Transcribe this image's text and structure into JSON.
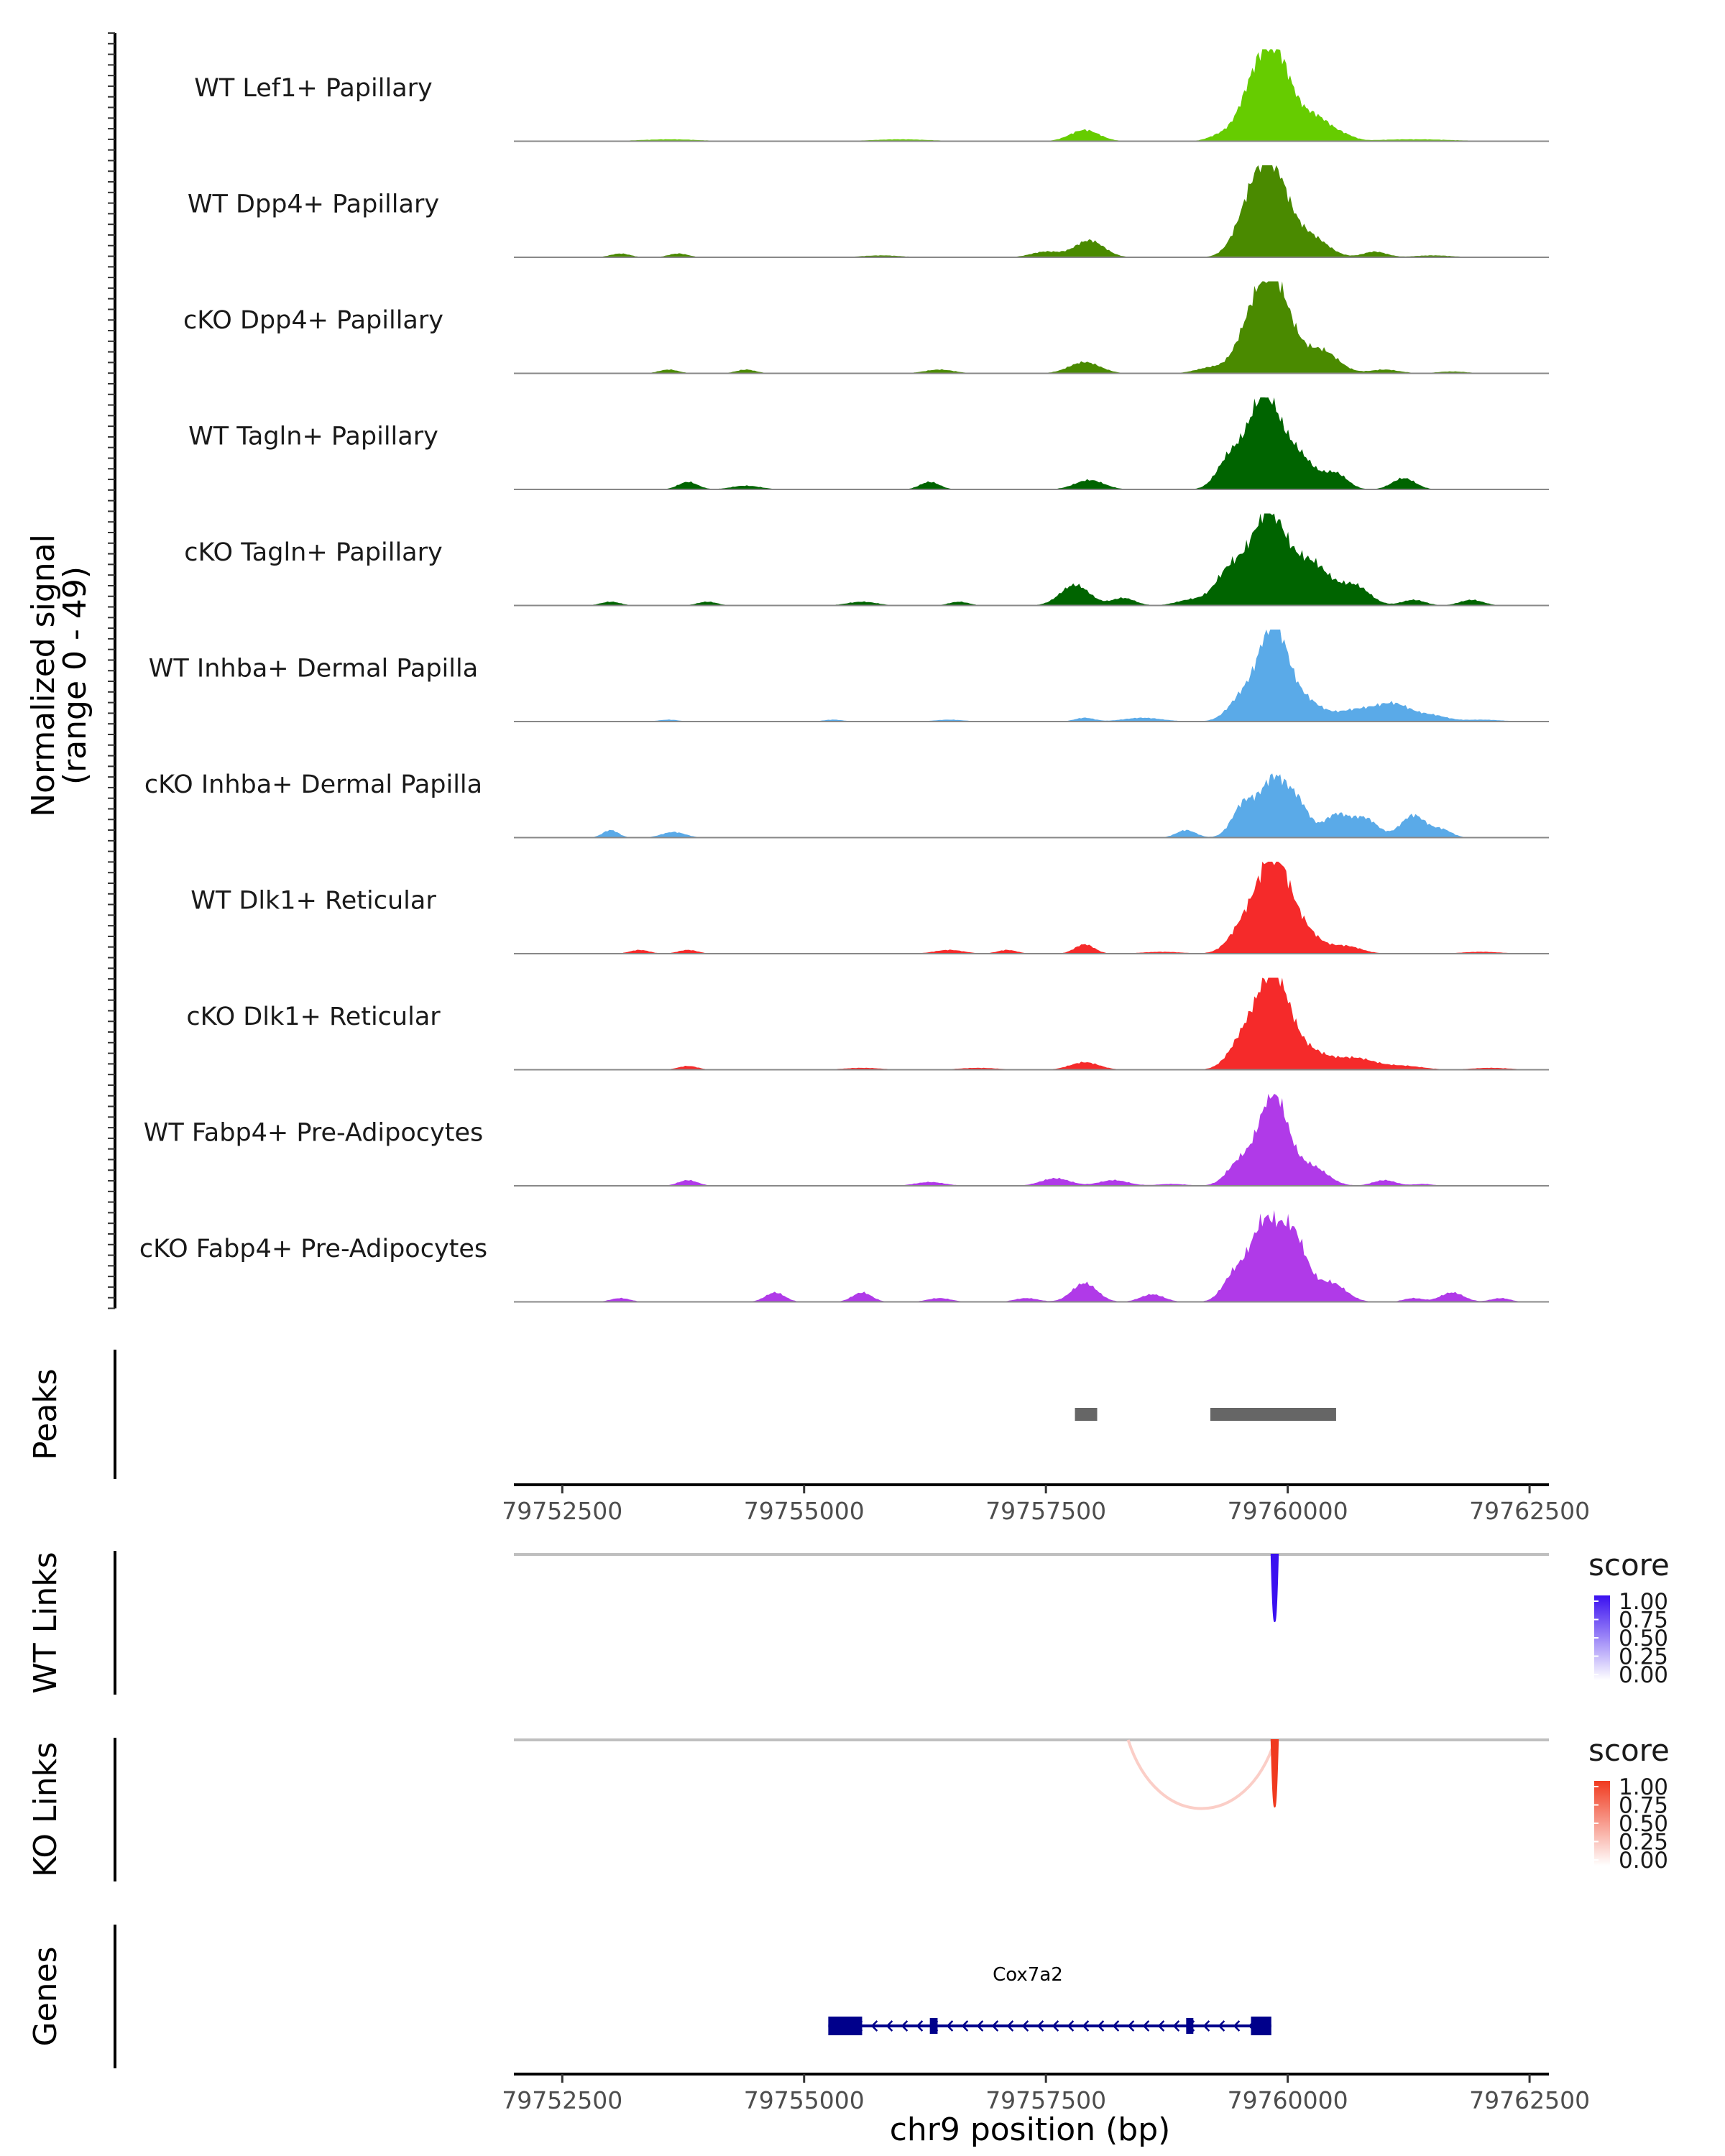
{
  "chart_data": {
    "type": "area",
    "region": "chr9",
    "xlim": [
      79752000,
      79762700
    ],
    "x_ticks": [
      79752500,
      79755000,
      79757500,
      79760000,
      79762500
    ],
    "x_tick_labels": [
      "79752500",
      "79755000",
      "79757500",
      "79760000",
      "79762500"
    ],
    "xlabel": "chr9 position (bp)",
    "coverage_ylabel": [
      "Normalized signal",
      "(range 0 - 49)"
    ],
    "ylim": [
      0,
      49
    ],
    "tracks": [
      {
        "name": "WT Lef1+ Papillary",
        "color": "#66cc00",
        "peaks": [
          [
            79759850,
            49,
            180
          ],
          [
            79759600,
            14,
            140
          ],
          [
            79760300,
            12,
            160
          ],
          [
            79757900,
            6,
            150
          ],
          [
            79759300,
            3,
            120
          ],
          [
            79760600,
            2,
            100
          ],
          [
            79753600,
            1,
            300
          ],
          [
            79756000,
            1,
            300
          ],
          [
            79761300,
            1,
            400
          ]
        ]
      },
      {
        "name": "WT Dpp4+ Papillary",
        "color": "#4a8a00",
        "peaks": [
          [
            79759820,
            49,
            180
          ],
          [
            79759580,
            14,
            150
          ],
          [
            79760250,
            10,
            170
          ],
          [
            79757950,
            9,
            150
          ],
          [
            79757500,
            3,
            150
          ],
          [
            79760900,
            3,
            120
          ],
          [
            79753100,
            2,
            100
          ],
          [
            79753700,
            2,
            100
          ],
          [
            79755800,
            1,
            200
          ],
          [
            79761500,
            1,
            200
          ]
        ]
      },
      {
        "name": "cKO Dpp4+ Papillary",
        "color": "#4a8a00",
        "peaks": [
          [
            79759850,
            49,
            180
          ],
          [
            79759600,
            16,
            150
          ],
          [
            79760350,
            12,
            170
          ],
          [
            79757900,
            6,
            160
          ],
          [
            79759200,
            3,
            150
          ],
          [
            79753600,
            2,
            100
          ],
          [
            79754400,
            2,
            100
          ],
          [
            79756400,
            2,
            150
          ],
          [
            79761000,
            2,
            150
          ],
          [
            79761700,
            1,
            150
          ]
        ]
      },
      {
        "name": "WT Tagln+ Papillary",
        "color": "#006400",
        "peaks": [
          [
            79759750,
            49,
            160
          ],
          [
            79759400,
            16,
            130
          ],
          [
            79760100,
            18,
            170
          ],
          [
            79760500,
            8,
            120
          ],
          [
            79761200,
            6,
            120
          ],
          [
            79757950,
            5,
            150
          ],
          [
            79753800,
            4,
            100
          ],
          [
            79756300,
            4,
            100
          ],
          [
            79754400,
            2,
            150
          ]
        ]
      },
      {
        "name": "cKO Tagln+ Papillary",
        "color": "#006400",
        "peaks": [
          [
            79759800,
            49,
            180
          ],
          [
            79759400,
            18,
            150
          ],
          [
            79760250,
            22,
            190
          ],
          [
            79757800,
            11,
            150
          ],
          [
            79760700,
            10,
            150
          ],
          [
            79758300,
            4,
            120
          ],
          [
            79759000,
            3,
            150
          ],
          [
            79761300,
            3,
            120
          ],
          [
            79761900,
            3,
            120
          ],
          [
            79753000,
            2,
            100
          ],
          [
            79754000,
            2,
            100
          ],
          [
            79755600,
            2,
            150
          ],
          [
            79756600,
            2,
            100
          ]
        ]
      },
      {
        "name": "WT Inhba+ Dermal Papilla",
        "color": "#5aaae8",
        "peaks": [
          [
            79759850,
            49,
            140
          ],
          [
            79759550,
            14,
            150
          ],
          [
            79760150,
            12,
            180
          ],
          [
            79760700,
            6,
            200
          ],
          [
            79761100,
            9,
            180
          ],
          [
            79761500,
            3,
            150
          ],
          [
            79757900,
            2,
            100
          ],
          [
            79758500,
            2,
            200
          ],
          [
            79753600,
            1,
            100
          ],
          [
            79755300,
            1,
            100
          ],
          [
            79756500,
            1,
            150
          ],
          [
            79762000,
            1,
            200
          ]
        ]
      },
      {
        "name": "cKO Inhba+ Dermal Papilla",
        "color": "#5aaae8",
        "peaks": [
          [
            79759850,
            30,
            130
          ],
          [
            79759550,
            18,
            120
          ],
          [
            79760100,
            18,
            120
          ],
          [
            79760500,
            12,
            130
          ],
          [
            79760800,
            10,
            130
          ],
          [
            79761300,
            12,
            130
          ],
          [
            79761600,
            4,
            100
          ],
          [
            79758950,
            4,
            100
          ],
          [
            79753000,
            4,
            80
          ],
          [
            79753650,
            3,
            120
          ]
        ]
      },
      {
        "name": "WT Dlk1+ Reticular",
        "color": "#f52a2a",
        "peaks": [
          [
            79759850,
            49,
            160
          ],
          [
            79759550,
            14,
            150
          ],
          [
            79760150,
            12,
            170
          ],
          [
            79760600,
            4,
            160
          ],
          [
            79757900,
            5,
            100
          ],
          [
            79757100,
            2,
            100
          ],
          [
            79753300,
            2,
            100
          ],
          [
            79753800,
            2,
            100
          ],
          [
            79756500,
            2,
            150
          ],
          [
            79758700,
            1,
            200
          ],
          [
            79762000,
            1,
            200
          ]
        ]
      },
      {
        "name": "cKO Dlk1+ Reticular",
        "color": "#f52a2a",
        "peaks": [
          [
            79759850,
            49,
            160
          ],
          [
            79759550,
            16,
            150
          ],
          [
            79760200,
            10,
            200
          ],
          [
            79760700,
            6,
            200
          ],
          [
            79757900,
            4,
            150
          ],
          [
            79761200,
            2,
            200
          ],
          [
            79753800,
            2,
            100
          ],
          [
            79755600,
            1,
            200
          ],
          [
            79756800,
            1,
            200
          ],
          [
            79762100,
            1,
            200
          ]
        ]
      },
      {
        "name": "WT Fabp4+ Pre-Adipocytes",
        "color": "#b03ae8",
        "peaks": [
          [
            79759850,
            49,
            150
          ],
          [
            79759500,
            12,
            130
          ],
          [
            79760250,
            10,
            160
          ],
          [
            79757600,
            4,
            150
          ],
          [
            79758200,
            3,
            150
          ],
          [
            79753800,
            3,
            100
          ],
          [
            79756300,
            2,
            150
          ],
          [
            79761000,
            3,
            120
          ],
          [
            79761400,
            1,
            100
          ],
          [
            79758800,
            1,
            150
          ]
        ]
      },
      {
        "name": "cKO Fabp4+ Pre-Adipocytes",
        "color": "#b03ae8",
        "peaks": [
          [
            79759750,
            40,
            140
          ],
          [
            79760050,
            36,
            140
          ],
          [
            79759450,
            14,
            120
          ],
          [
            79760450,
            10,
            150
          ],
          [
            79757900,
            10,
            130
          ],
          [
            79754700,
            5,
            100
          ],
          [
            79755600,
            5,
            100
          ],
          [
            79761700,
            5,
            120
          ],
          [
            79753100,
            2,
            100
          ],
          [
            79756400,
            2,
            120
          ],
          [
            79757300,
            2,
            120
          ],
          [
            79758600,
            4,
            120
          ],
          [
            79761300,
            2,
            100
          ],
          [
            79762200,
            2,
            100
          ]
        ]
      }
    ],
    "peaks": {
      "label": "Peaks",
      "ranges": [
        [
          79757800,
          79758030
        ],
        [
          79759200,
          79760500
        ]
      ]
    },
    "wt_links": {
      "label": "WT Links",
      "links": [
        [
          79759860,
          79759870,
          1.0
        ]
      ],
      "legend": {
        "title": "score",
        "ticks": [
          "1.00",
          "0.75",
          "0.50",
          "0.25",
          "0.00"
        ]
      }
    },
    "ko_links": {
      "label": "KO Links",
      "links": [
        [
          79758350,
          79759870,
          0.25
        ],
        [
          79759860,
          79759870,
          1.0
        ]
      ],
      "legend": {
        "title": "score",
        "ticks": [
          "1.00",
          "0.75",
          "0.50",
          "0.25",
          "0.00"
        ]
      }
    },
    "genes": {
      "label": "Genes",
      "gene": {
        "name": "Cox7a2",
        "start": 79755250,
        "end": 79759830,
        "strand": "-",
        "exons": [
          [
            79755250,
            79755600
          ],
          [
            79756300,
            79756380
          ],
          [
            79758950,
            79759020
          ],
          [
            79759620,
            79759830
          ]
        ]
      }
    }
  }
}
